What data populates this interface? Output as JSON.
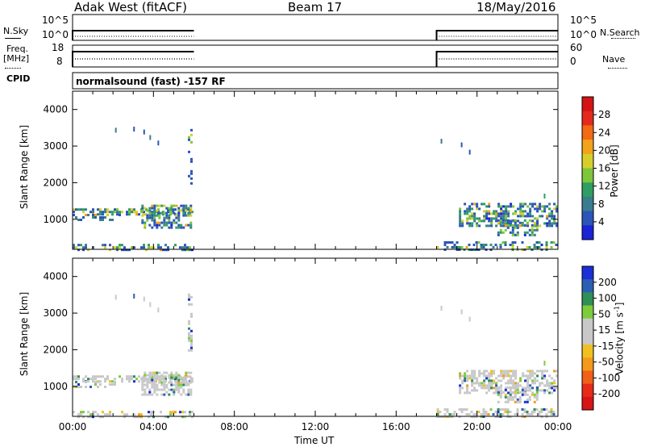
{
  "header": {
    "station": "Adak West (fitACF)",
    "beam": "Beam 17",
    "date": "18/May/2016"
  },
  "panels": {
    "nsky_label": "N.Sky",
    "nsky_ticks": [
      "10^5",
      "10^0"
    ],
    "nsearch_label": "N.Search",
    "nsearch_ticks": [
      "10^5",
      "10^0"
    ],
    "freq_label": "Freq.",
    "freq_unit": "[MHz]",
    "freq_ticks": [
      "18",
      "8"
    ],
    "nave_label": "Nave",
    "nave_ticks": [
      "60",
      "0"
    ],
    "cpid_label": "CPID",
    "cpid_text": "normalsound (fast) -157 RF"
  },
  "chart_data": [
    {
      "type": "heatmap",
      "name": "power",
      "ylabel": "Slant Range [km]",
      "xlabel": "",
      "ylim": [
        180,
        4500
      ],
      "xlim": [
        "00:00",
        "24:00"
      ],
      "yticks": [
        "1000",
        "2000",
        "3000",
        "4000"
      ],
      "xticks": [
        "00:00",
        "04:00",
        "08:00",
        "12:00",
        "16:00",
        "20:00",
        "00:00"
      ],
      "colorbar": {
        "label": "Power [dB]",
        "ticks": [
          "4",
          "8",
          "12",
          "16",
          "20",
          "24",
          "28"
        ],
        "range": [
          0,
          32
        ],
        "colors": [
          "#1a23d6",
          "#2b55b8",
          "#3a7d8e",
          "#2f9e62",
          "#7cc63c",
          "#d6cf2b",
          "#f3a21c",
          "#f16a16",
          "#e42a1c",
          "#d41414"
        ]
      },
      "data_intervals_ut": [
        [
          "00:00",
          "06:00"
        ],
        [
          "18:00",
          "24:00"
        ]
      ]
    },
    {
      "type": "heatmap",
      "name": "velocity",
      "ylabel": "Slant Range [km]",
      "xlabel": "Time UT",
      "ylim": [
        180,
        4500
      ],
      "xlim": [
        "00:00",
        "24:00"
      ],
      "yticks": [
        "1000",
        "2000",
        "3000",
        "4000"
      ],
      "xticks": [
        "00:00",
        "04:00",
        "08:00",
        "12:00",
        "16:00",
        "20:00",
        "00:00"
      ],
      "colorbar": {
        "label": "Velocity [m s",
        "label_sup": "-1",
        "label_close": "]",
        "ticks": [
          "200",
          "100",
          "50",
          "15",
          "-15",
          "-50",
          "-100",
          "-200"
        ],
        "colors": [
          "#1a2fd6",
          "#2c5fb3",
          "#2e8f57",
          "#7ccc3c",
          "#c8c8c8",
          "#c8c8c8",
          "#f0c020",
          "#f39a1a",
          "#f06018",
          "#e82a1a",
          "#d81414"
        ]
      },
      "data_intervals_ut": [
        [
          "00:00",
          "06:00"
        ],
        [
          "18:00",
          "24:00"
        ]
      ]
    }
  ]
}
